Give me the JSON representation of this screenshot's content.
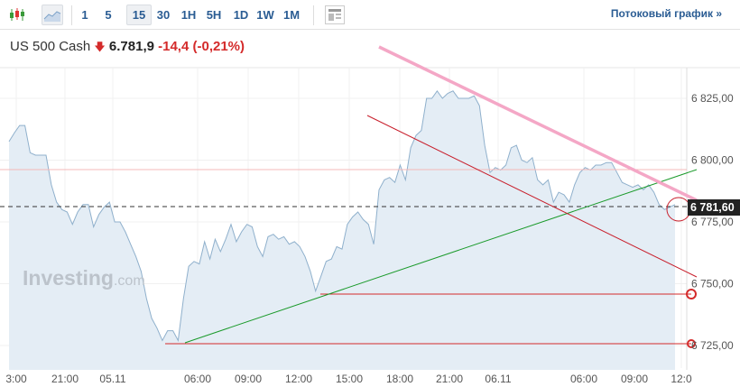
{
  "toolbar": {
    "intervals": [
      "1",
      "5",
      "15",
      "30",
      "1H",
      "5H",
      "1D",
      "1W",
      "1M"
    ],
    "selected": "15",
    "stream_label": "Потоковый график »",
    "icons": [
      "candlestick-icon",
      "area-chart-icon",
      "layout-icon"
    ]
  },
  "instrument": {
    "name": "US 500 Cash",
    "price": "6.781,9",
    "change": "-14,4",
    "change_pct": "(-0,21%)",
    "direction": "down"
  },
  "last_price_label": "6 781,60",
  "watermark": {
    "brand": "Investing",
    "suffix": ".com"
  },
  "colors": {
    "line": "#8fb0cc",
    "fill": "#e4edf5",
    "down": "#d42b2b",
    "trend_green": "#1a9a2a",
    "trend_pink": "#f4a7c6"
  },
  "chart_data": {
    "type": "area",
    "y_ticks": [
      "6 825,00",
      "6 800,00",
      "6 775,00",
      "6 750,00",
      "6 725,00"
    ],
    "y_tick_values": [
      6825,
      6800,
      6775,
      6750,
      6725
    ],
    "x_ticks": [
      "3:00",
      "21:00",
      "05.11",
      "06:00",
      "09:00",
      "12:00",
      "15:00",
      "18:00",
      "21:00",
      "06.11",
      "06:00",
      "09:00",
      "12:0"
    ],
    "ylim": [
      6705,
      6852
    ],
    "values": [
      6807.5,
      6811,
      6814,
      6814,
      6803,
      6802,
      6802,
      6802,
      6790,
      6783,
      6780,
      6779,
      6774,
      6779,
      6782,
      6782,
      6773,
      6778,
      6781,
      6783,
      6775,
      6775,
      6771,
      6766,
      6761,
      6755,
      6744,
      6736,
      6732,
      6727,
      6731,
      6731,
      6727,
      6744,
      6757,
      6759,
      6758,
      6767,
      6760,
      6768,
      6763,
      6768,
      6774,
      6767,
      6771,
      6774,
      6773,
      6765,
      6761,
      6769,
      6770,
      6768,
      6769,
      6766,
      6767,
      6765,
      6761,
      6755,
      6747,
      6753,
      6759,
      6760,
      6765,
      6764,
      6774,
      6777,
      6779,
      6776,
      6774,
      6766,
      6788,
      6792,
      6793,
      6791,
      6798,
      6792,
      6805,
      6810,
      6812,
      6825,
      6825,
      6828,
      6825,
      6827,
      6828,
      6825,
      6825,
      6825,
      6826,
      6822,
      6806,
      6795,
      6797,
      6796,
      6798,
      6805,
      6806,
      6800,
      6799,
      6801,
      6792,
      6790,
      6792,
      6783,
      6787,
      6786,
      6783,
      6790,
      6795,
      6797,
      6796,
      6798,
      6798,
      6799,
      6799,
      6795,
      6791,
      6790,
      6789,
      6790,
      6788,
      6790,
      6787,
      6782,
      6780,
      6781,
      6782
    ],
    "last": 6781.6,
    "horizontal_levels": [
      6796,
      6745.8,
      6725.7
    ]
  }
}
